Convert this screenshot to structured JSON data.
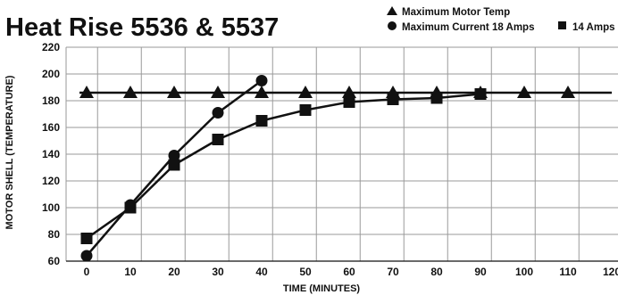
{
  "chart_data": {
    "type": "line",
    "title": "Heat Rise 5536 & 5537",
    "xlabel": "TIME (MINUTES)",
    "ylabel": "MOTOR SHELL (TEMPERATURE)",
    "xlim": [
      0,
      120
    ],
    "ylim": [
      60,
      220
    ],
    "x_ticks": [
      0,
      10,
      20,
      30,
      40,
      50,
      60,
      70,
      80,
      90,
      100,
      110,
      120
    ],
    "y_ticks": [
      60,
      80,
      100,
      120,
      140,
      160,
      180,
      200,
      220
    ],
    "grid": true,
    "legend_position": "top-right",
    "series": [
      {
        "name": "Maximum Motor Temp",
        "marker": "triangle",
        "x": [
          0,
          10,
          20,
          30,
          40,
          50,
          60,
          70,
          80,
          90,
          100,
          110
        ],
        "y": [
          186,
          186,
          186,
          186,
          186,
          186,
          186,
          186,
          186,
          186,
          186,
          186
        ]
      },
      {
        "name": "Maximum Current 18 Amps",
        "marker": "circle",
        "x": [
          0,
          10,
          20,
          30,
          40
        ],
        "y": [
          64,
          102,
          139,
          171,
          195
        ]
      },
      {
        "name": "14 Amps",
        "marker": "square",
        "x": [
          0,
          10,
          20,
          30,
          40,
          50,
          60,
          70,
          80,
          90
        ],
        "y": [
          77,
          100,
          132,
          151,
          165,
          173,
          179,
          181,
          182,
          185
        ]
      }
    ]
  },
  "colors": {
    "ink": "#111111",
    "grid": "#9a9a9a",
    "background": "#ffffff"
  }
}
